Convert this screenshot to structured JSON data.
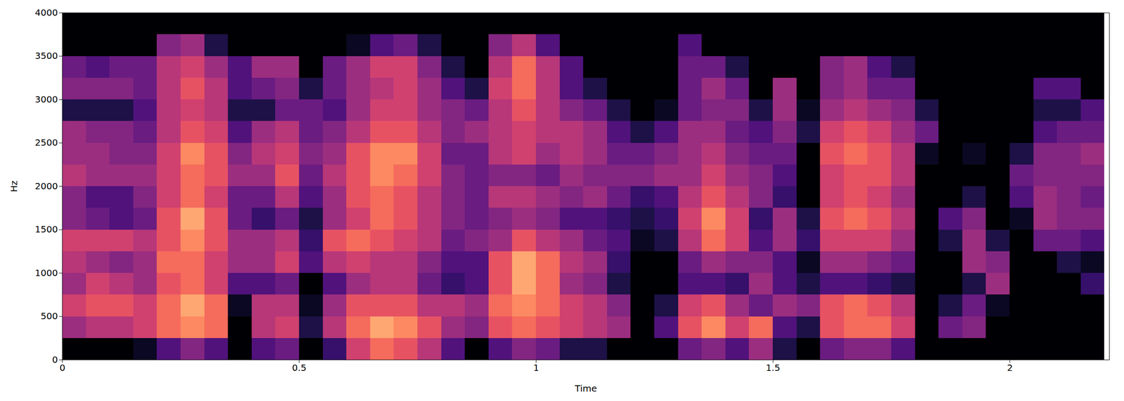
{
  "chart_data": {
    "type": "heatmap",
    "x_label": "Time",
    "y_label": "Hz",
    "xlim": [
      0,
      2.21
    ],
    "ylim": [
      0,
      4000
    ],
    "xticks": [
      0,
      0.5,
      1,
      1.5,
      2
    ],
    "yticks": [
      0,
      500,
      1000,
      1500,
      2000,
      2500,
      3000,
      3500,
      4000
    ],
    "color": "magma",
    "color_range": [
      -80,
      0
    ],
    "times": [
      0,
      0.05,
      0.1,
      0.15,
      0.2,
      0.25,
      0.3,
      0.35,
      0.4,
      0.45,
      0.5,
      0.55,
      0.6,
      0.65,
      0.7,
      0.75,
      0.8,
      0.85,
      0.9,
      0.95,
      1,
      1.05,
      1.1,
      1.15,
      1.2,
      1.25,
      1.3,
      1.35,
      1.4,
      1.45,
      1.5,
      1.55,
      1.6,
      1.65,
      1.7,
      1.75,
      1.8,
      1.85,
      1.9,
      1.95,
      2,
      2.05,
      2.1,
      2.15,
      2.2
    ],
    "frequencies": [
      0,
      250,
      500,
      750,
      1000,
      1250,
      1500,
      1750,
      2000,
      2250,
      2500,
      2750,
      3000,
      3250,
      3500,
      3750,
      4000
    ],
    "values": [
      [
        -80,
        -45,
        -35,
        -45,
        -40,
        -35,
        -50,
        -50,
        -40,
        -45,
        -45,
        -70,
        -50,
        -55,
        -80,
        -80
      ],
      [
        -80,
        -40,
        -30,
        -35,
        -45,
        -35,
        -55,
        -60,
        -45,
        -45,
        -50,
        -70,
        -50,
        -60,
        -80,
        -80
      ],
      [
        -80,
        -40,
        -30,
        -40,
        -50,
        -35,
        -60,
        -60,
        -45,
        -50,
        -50,
        -70,
        -50,
        -55,
        -80,
        -80
      ],
      [
        -75,
        -35,
        -35,
        -45,
        -45,
        -40,
        -55,
        -50,
        -45,
        -50,
        -55,
        -60,
        -55,
        -55,
        -80,
        -80
      ],
      [
        -60,
        -25,
        -25,
        -30,
        -25,
        -30,
        -30,
        -35,
        -35,
        -35,
        -40,
        -40,
        -40,
        -40,
        -50,
        -80
      ],
      [
        -50,
        -20,
        -15,
        -25,
        -25,
        -20,
        -15,
        -25,
        -25,
        -20,
        -30,
        -35,
        -30,
        -35,
        -45,
        -80
      ],
      [
        -60,
        -25,
        -25,
        -35,
        -35,
        -30,
        -30,
        -35,
        -30,
        -30,
        -35,
        -40,
        -40,
        -45,
        -70,
        -80
      ],
      [
        -80,
        -80,
        -75,
        -60,
        -45,
        -45,
        -55,
        -55,
        -45,
        -50,
        -60,
        -70,
        -60,
        -60,
        -80,
        -80
      ],
      [
        -60,
        -40,
        -40,
        -60,
        -45,
        -45,
        -65,
        -55,
        -45,
        -40,
        -45,
        -70,
        -55,
        -45,
        -80,
        -80
      ],
      [
        -55,
        -35,
        -40,
        -55,
        -35,
        -40,
        -55,
        -40,
        -30,
        -35,
        -40,
        -55,
        -50,
        -45,
        -80,
        -80
      ],
      [
        -80,
        -70,
        -75,
        -80,
        -60,
        -65,
        -70,
        -60,
        -55,
        -50,
        -55,
        -55,
        -70,
        -80,
        -80,
        -80
      ],
      [
        -65,
        -40,
        -45,
        -60,
        -40,
        -30,
        -45,
        -45,
        -40,
        -45,
        -50,
        -60,
        -55,
        -55,
        -80,
        -80
      ],
      [
        -35,
        -25,
        -30,
        -45,
        -35,
        -25,
        -35,
        -30,
        -30,
        -30,
        -40,
        -45,
        -45,
        -45,
        -75,
        -80
      ],
      [
        -25,
        -15,
        -30,
        -40,
        -40,
        -30,
        -25,
        -25,
        -20,
        -20,
        -30,
        -35,
        -40,
        -35,
        -60,
        -80
      ],
      [
        -30,
        -20,
        -30,
        -40,
        -40,
        -35,
        -30,
        -30,
        -25,
        -20,
        -30,
        -35,
        -35,
        -35,
        -55,
        -80
      ],
      [
        -40,
        -30,
        -40,
        -55,
        -50,
        -40,
        -40,
        -40,
        -35,
        -35,
        -40,
        -45,
        -45,
        -50,
        -70,
        -80
      ],
      [
        -60,
        -45,
        -40,
        -65,
        -60,
        -55,
        -50,
        -50,
        -50,
        -55,
        -50,
        -50,
        -60,
        -70,
        -80,
        -80
      ],
      [
        -80,
        -50,
        -45,
        -60,
        -60,
        -50,
        -55,
        -55,
        -55,
        -55,
        -45,
        -55,
        -70,
        -80,
        -80,
        -80
      ],
      [
        -60,
        -30,
        -25,
        -30,
        -30,
        -45,
        -50,
        -40,
        -50,
        -40,
        -40,
        -40,
        -35,
        -40,
        -50,
        -80
      ],
      [
        -50,
        -25,
        -20,
        -15,
        -15,
        -30,
        -45,
        -40,
        -50,
        -35,
        -35,
        -30,
        -25,
        -25,
        -40,
        -80
      ],
      [
        -55,
        -30,
        -25,
        -25,
        -25,
        -40,
        -50,
        -45,
        -55,
        -45,
        -40,
        -40,
        -40,
        -40,
        -60,
        -80
      ],
      [
        -70,
        -35,
        -35,
        -45,
        -40,
        -45,
        -60,
        -50,
        -45,
        -40,
        -40,
        -50,
        -60,
        -60,
        -80,
        -80
      ],
      [
        -70,
        -40,
        -40,
        -50,
        -45,
        -55,
        -60,
        -45,
        -50,
        -45,
        -45,
        -55,
        -70,
        -80,
        -80,
        -80
      ],
      [
        -80,
        -45,
        -50,
        -70,
        -65,
        -60,
        -65,
        -55,
        -50,
        -55,
        -60,
        -70,
        -80,
        -80,
        -80,
        -80
      ],
      [
        -80,
        -80,
        -80,
        -80,
        -80,
        -75,
        -70,
        -65,
        -50,
        -55,
        -70,
        -80,
        -80,
        -80,
        -80,
        -80
      ],
      [
        -80,
        -60,
        -70,
        -80,
        -80,
        -70,
        -65,
        -60,
        -45,
        -50,
        -60,
        -75,
        -80,
        -80,
        -80,
        -80
      ],
      [
        -55,
        -30,
        -35,
        -60,
        -55,
        -40,
        -35,
        -40,
        -45,
        -45,
        -45,
        -55,
        -55,
        -55,
        -60,
        -80
      ],
      [
        -50,
        -20,
        -30,
        -60,
        -45,
        -25,
        -20,
        -30,
        -35,
        -40,
        -45,
        -50,
        -45,
        -55,
        -80,
        -80
      ],
      [
        -60,
        -35,
        -45,
        -65,
        -50,
        -35,
        -35,
        -40,
        -45,
        -50,
        -55,
        -50,
        -55,
        -70,
        -80,
        -80
      ],
      [
        -45,
        -25,
        -55,
        -45,
        -50,
        -60,
        -65,
        -50,
        -50,
        -55,
        -60,
        -70,
        -80,
        -80,
        -80,
        -80
      ],
      [
        -70,
        -60,
        -45,
        -60,
        -60,
        -45,
        -45,
        -65,
        -60,
        -55,
        -50,
        -45,
        -45,
        -80,
        -80,
        -80
      ],
      [
        -80,
        -70,
        -50,
        -70,
        -75,
        -65,
        -70,
        -80,
        -80,
        -80,
        -70,
        -75,
        -80,
        -80,
        -80,
        -80
      ],
      [
        -55,
        -30,
        -30,
        -60,
        -45,
        -35,
        -30,
        -35,
        -35,
        -30,
        -35,
        -45,
        -50,
        -50,
        -80,
        -80
      ],
      [
        -50,
        -25,
        -25,
        -60,
        -45,
        -35,
        -25,
        -30,
        -30,
        -25,
        -30,
        -40,
        -45,
        -45,
        -80,
        -80
      ],
      [
        -50,
        -25,
        -30,
        -65,
        -50,
        -35,
        -30,
        -35,
        -30,
        -30,
        -35,
        -45,
        -55,
        -60,
        -80,
        -80
      ],
      [
        -60,
        -35,
        -40,
        -70,
        -55,
        -45,
        -40,
        -45,
        -40,
        -40,
        -45,
        -50,
        -55,
        -70,
        -80,
        -80
      ],
      [
        -80,
        -80,
        -80,
        -80,
        -80,
        -80,
        -80,
        -80,
        -80,
        -75,
        -55,
        -70,
        -80,
        -80,
        -80,
        -80
      ],
      [
        -80,
        -55,
        -70,
        -80,
        -80,
        -70,
        -60,
        -80,
        -80,
        -80,
        -80,
        -80,
        -80,
        -80,
        -80,
        -80
      ],
      [
        -80,
        -50,
        -55,
        -70,
        -45,
        -45,
        -50,
        -70,
        -80,
        -75,
        -80,
        -80,
        -80,
        -80,
        -80,
        -80
      ],
      [
        -80,
        -80,
        -75,
        -45,
        -50,
        -70,
        -80,
        -80,
        -80,
        -80,
        -80,
        -80,
        -80,
        -80,
        -80,
        -80
      ],
      [
        -80,
        -80,
        -80,
        -80,
        -80,
        -80,
        -75,
        -60,
        -55,
        -70,
        -80,
        -80,
        -80,
        -80,
        -80,
        -80
      ],
      [
        -80,
        -80,
        -80,
        -80,
        -80,
        -55,
        -45,
        -45,
        -50,
        -50,
        -60,
        -70,
        -60,
        -80,
        -80,
        -80
      ],
      [
        -80,
        -80,
        -80,
        -80,
        -70,
        -55,
        -50,
        -50,
        -50,
        -50,
        -55,
        -70,
        -60,
        -80,
        -80,
        -80
      ],
      [
        -80,
        -80,
        -80,
        -65,
        -75,
        -60,
        -50,
        -55,
        -50,
        -45,
        -55,
        -60,
        -80,
        -80,
        -80,
        -80
      ]
    ]
  }
}
